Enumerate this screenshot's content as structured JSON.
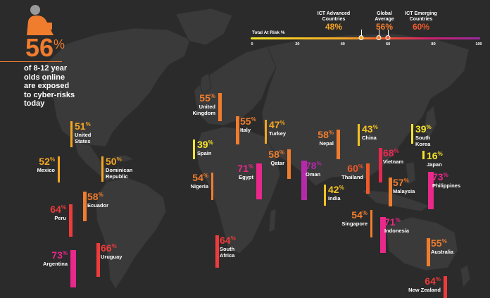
{
  "headline": {
    "value": "56",
    "unit": "%",
    "text_lines": [
      "of 8-12 year",
      "olds online",
      "are exposed",
      "to cyber-risks",
      "today"
    ]
  },
  "scale": {
    "title": "Total At Risk %",
    "ticks": [
      "0",
      "20",
      "40",
      "60",
      "80",
      "100"
    ],
    "benchmarks": [
      {
        "name_lines": [
          "ICT Advanced",
          "Countries"
        ],
        "value": "48%",
        "number": 48,
        "color": "#f5a623"
      },
      {
        "name_lines": [
          "Global",
          "Average"
        ],
        "value": "56%",
        "number": 56,
        "color": "#f07d2e"
      },
      {
        "name_lines": [
          "ICT Emerging",
          "Countries"
        ],
        "value": "60%",
        "number": 60,
        "color": "#ef5a2a"
      }
    ]
  },
  "countries": [
    {
      "name_lines": [
        "United",
        "States"
      ],
      "value": 51,
      "color": "#f5a623"
    },
    {
      "name_lines": [
        "Mexico"
      ],
      "value": 52,
      "color": "#f5a623"
    },
    {
      "name_lines": [
        "Dominican",
        "Republic"
      ],
      "value": 50,
      "color": "#f5a623"
    },
    {
      "name_lines": [
        "Ecuador"
      ],
      "value": 58,
      "color": "#f07d2e"
    },
    {
      "name_lines": [
        "Peru"
      ],
      "value": 64,
      "color": "#ee3b3b"
    },
    {
      "name_lines": [
        "Argentina"
      ],
      "value": 73,
      "color": "#e8288a"
    },
    {
      "name_lines": [
        "Uruguay"
      ],
      "value": 66,
      "color": "#ee3b3b"
    },
    {
      "name_lines": [
        "United",
        "Kingdom"
      ],
      "value": 55,
      "color": "#f07d2e"
    },
    {
      "name_lines": [
        "Spain"
      ],
      "value": 39,
      "color": "#f6e32a"
    },
    {
      "name_lines": [
        "Italy"
      ],
      "value": 55,
      "color": "#f07d2e"
    },
    {
      "name_lines": [
        "Turkey"
      ],
      "value": 47,
      "color": "#f5a623"
    },
    {
      "name_lines": [
        "Nigeria"
      ],
      "value": 54,
      "color": "#f07d2e"
    },
    {
      "name_lines": [
        "Egypt"
      ],
      "value": 71,
      "color": "#e8288a"
    },
    {
      "name_lines": [
        "Qatar"
      ],
      "value": 58,
      "color": "#f07d2e"
    },
    {
      "name_lines": [
        "Oman"
      ],
      "value": 78,
      "color": "#b52aa8"
    },
    {
      "name_lines": [
        "South",
        "Africa"
      ],
      "value": 64,
      "color": "#ee3b3b"
    },
    {
      "name_lines": [
        "Nepal"
      ],
      "value": 58,
      "color": "#f07d2e"
    },
    {
      "name_lines": [
        "India"
      ],
      "value": 42,
      "color": "#f5c320"
    },
    {
      "name_lines": [
        "Thailand"
      ],
      "value": 60,
      "color": "#ef5a2a"
    },
    {
      "name_lines": [
        "China"
      ],
      "value": 43,
      "color": "#f5c320"
    },
    {
      "name_lines": [
        "Vietnam"
      ],
      "value": 68,
      "color": "#e8284f"
    },
    {
      "name_lines": [
        "South",
        "Korea"
      ],
      "value": 39,
      "color": "#f6e32a"
    },
    {
      "name_lines": [
        "Japan"
      ],
      "value": 16,
      "color": "#f6e32a"
    },
    {
      "name_lines": [
        "Malaysia"
      ],
      "value": 57,
      "color": "#f07d2e"
    },
    {
      "name_lines": [
        "Philippines"
      ],
      "value": 73,
      "color": "#e8288a"
    },
    {
      "name_lines": [
        "Singapore"
      ],
      "value": 54,
      "color": "#f07d2e"
    },
    {
      "name_lines": [
        "Indonesia"
      ],
      "value": 71,
      "color": "#e8288a"
    },
    {
      "name_lines": [
        "Australia"
      ],
      "value": 55,
      "color": "#f07d2e"
    },
    {
      "name_lines": [
        "New Zealand"
      ],
      "value": 64,
      "color": "#ee3b3b"
    }
  ],
  "colors": {
    "background": "#2b2b2b",
    "land": "#3a3a3a",
    "accent": "#f07d2e"
  },
  "icons": {
    "child": "child-silhouette-icon"
  }
}
